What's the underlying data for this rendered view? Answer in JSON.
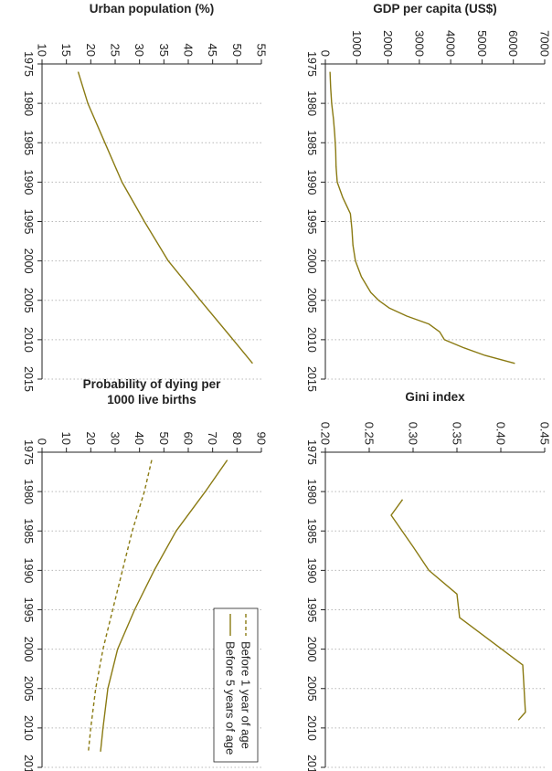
{
  "colors": {
    "line": "#8a7a12",
    "axis": "#222222",
    "grid": "#b8b8b8",
    "text": "#222222"
  },
  "chart_data": [
    {
      "type": "line",
      "panel": "top-left",
      "ylabel": "GDP per capita (US$)",
      "xlim": [
        1975,
        2015
      ],
      "ylim": [
        0,
        7000
      ],
      "xticks": [
        1975,
        1980,
        1985,
        1990,
        1995,
        2000,
        2005,
        2010,
        2015
      ],
      "yticks": [
        0,
        1000,
        2000,
        3000,
        4000,
        5000,
        6000,
        7000
      ],
      "grid": "vertical",
      "series": [
        {
          "style": "solid",
          "x": [
            1976,
            1978,
            1980,
            1982,
            1984,
            1986,
            1988,
            1990,
            1992,
            1994,
            1996,
            1998,
            2000,
            2002,
            2004,
            2005,
            2006,
            2007,
            2008,
            2009,
            2010,
            2011,
            2012,
            2013
          ],
          "values": [
            150,
            170,
            200,
            260,
            300,
            330,
            340,
            380,
            560,
            800,
            850,
            880,
            960,
            1150,
            1450,
            1700,
            2050,
            2600,
            3300,
            3650,
            3800,
            4400,
            5100,
            6050
          ]
        }
      ]
    },
    {
      "type": "line",
      "panel": "top-right",
      "ylabel": "Gini index",
      "xlim": [
        1975,
        2015
      ],
      "ylim": [
        0.2,
        0.45
      ],
      "xticks": [
        1975,
        1980,
        1985,
        1990,
        1995,
        2000,
        2005,
        2010,
        2015
      ],
      "yticks": [
        0.2,
        0.25,
        0.3,
        0.35,
        0.4,
        0.45
      ],
      "grid": "vertical",
      "series": [
        {
          "style": "solid",
          "x": [
            1981,
            1983,
            1987,
            1990,
            1993,
            1996,
            2002,
            2008,
            2009
          ],
          "values": [
            0.288,
            0.275,
            0.3,
            0.318,
            0.35,
            0.353,
            0.425,
            0.428,
            0.42
          ]
        }
      ]
    },
    {
      "type": "line",
      "panel": "bottom-left",
      "ylabel": "Urban population (%)",
      "xlim": [
        1975,
        2015
      ],
      "ylim": [
        10,
        55
      ],
      "xticks": [
        1975,
        1980,
        1985,
        1990,
        1995,
        2000,
        2005,
        2010,
        2015
      ],
      "yticks": [
        10,
        15,
        20,
        25,
        30,
        35,
        40,
        45,
        50,
        55
      ],
      "grid": "vertical",
      "series": [
        {
          "style": "solid",
          "x": [
            1976,
            1980,
            1985,
            1990,
            1995,
            2000,
            2005,
            2010,
            2013
          ],
          "values": [
            17.4,
            19.4,
            22.9,
            26.4,
            31.0,
            35.9,
            42.5,
            49.2,
            53.2
          ]
        }
      ]
    },
    {
      "type": "line",
      "panel": "bottom-right",
      "ylabel": "Probability of dying per 1000 live births",
      "xlim": [
        1975,
        2015
      ],
      "ylim": [
        0,
        90
      ],
      "xticks": [
        1975,
        1980,
        1985,
        1990,
        1995,
        2000,
        2005,
        2010,
        2015
      ],
      "yticks": [
        0,
        10,
        20,
        30,
        40,
        50,
        60,
        70,
        80,
        90
      ],
      "grid": "vertical",
      "legend": "top-right",
      "series": [
        {
          "name": "Before 1 year of age",
          "style": "dashed",
          "x": [
            1976,
            1980,
            1985,
            1990,
            1995,
            2000,
            2005,
            2010,
            2013
          ],
          "values": [
            45,
            42,
            37,
            33,
            29,
            25,
            22,
            20,
            19
          ]
        },
        {
          "name": "Before 5 years of age",
          "style": "solid",
          "x": [
            1976,
            1980,
            1985,
            1990,
            1995,
            2000,
            2005,
            2010,
            2013
          ],
          "values": [
            76,
            67,
            55,
            46,
            38,
            31,
            27,
            25,
            24
          ]
        }
      ]
    }
  ]
}
